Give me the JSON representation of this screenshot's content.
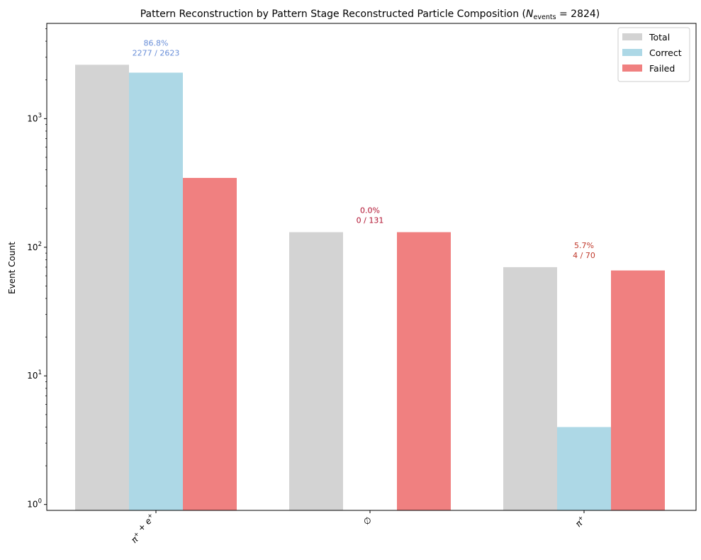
{
  "chart_data": {
    "type": "bar",
    "title": "Pattern Reconstruction by Pattern Stage Reconstructed Particle Composition (",
    "title_math": {
      "var": "N",
      "sub": "events",
      "rest": " = 2824)"
    },
    "xlabel": "",
    "ylabel": "Event Count",
    "yscale": "log",
    "ylim": [
      0.9,
      5500
    ],
    "ytick_labels": [
      {
        "base": "10",
        "exp": "0",
        "value": 1
      },
      {
        "base": "10",
        "exp": "1",
        "value": 10
      },
      {
        "base": "10",
        "exp": "2",
        "value": 100
      },
      {
        "base": "10",
        "exp": "3",
        "value": 1000
      }
    ],
    "categories": [
      {
        "parts": [
          [
            "π",
            "+"
          ],
          [
            " + e",
            "+"
          ]
        ]
      },
      {
        "parts": [
          [
            "∅",
            ""
          ]
        ]
      },
      {
        "parts": [
          [
            "π",
            "+"
          ]
        ]
      }
    ],
    "series": [
      {
        "name": "Total",
        "color": "#d3d3d3",
        "values": [
          2623,
          131,
          70
        ]
      },
      {
        "name": "Correct",
        "color": "#add8e6",
        "values": [
          2277,
          0,
          4
        ]
      },
      {
        "name": "Failed",
        "color": "#f08080",
        "values": [
          346,
          131,
          66
        ]
      }
    ],
    "annotations": [
      {
        "category_index": 0,
        "line1": "86.8%",
        "line2": "2277 / 2623",
        "color": "#6a8fd8",
        "anchor_value": 2623
      },
      {
        "category_index": 1,
        "line1": "0.0%",
        "line2": "0 / 131",
        "color": "#b0102e",
        "anchor_value": 131
      },
      {
        "category_index": 2,
        "line1": "5.7%",
        "line2": "4 / 70",
        "color": "#c0392b",
        "anchor_value": 70
      }
    ],
    "legend": {
      "placement": "top-right",
      "entries": [
        "Total",
        "Correct",
        "Failed"
      ]
    },
    "grid": false
  }
}
